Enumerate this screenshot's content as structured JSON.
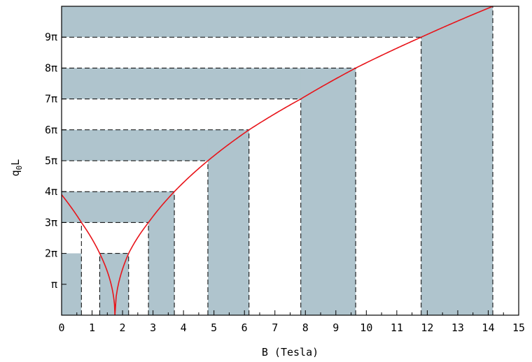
{
  "chart_data": {
    "type": "area",
    "xlabel": "B (Tesla)",
    "ylabel_main": "q",
    "ylabel_sub": "0",
    "ylabel_tail": "L",
    "xlim": [
      0,
      15
    ],
    "ylim": [
      0,
      10
    ],
    "y_unit": "π",
    "x_ticks": [
      {
        "value": 0,
        "label": "0"
      },
      {
        "value": 1,
        "label": "1"
      },
      {
        "value": 2,
        "label": "2"
      },
      {
        "value": 3,
        "label": "3"
      },
      {
        "value": 4,
        "label": "4"
      },
      {
        "value": 5,
        "label": "5"
      },
      {
        "value": 6,
        "label": "6"
      },
      {
        "value": 7,
        "label": "7"
      },
      {
        "value": 8,
        "label": "8"
      },
      {
        "value": 9,
        "label": "9"
      },
      {
        "value": 10,
        "label": "10"
      },
      {
        "value": 11,
        "label": "11"
      },
      {
        "value": 12,
        "label": "12"
      },
      {
        "value": 13,
        "label": "13"
      },
      {
        "value": 14,
        "label": "14"
      },
      {
        "value": 15,
        "label": "15"
      }
    ],
    "y_ticks": [
      {
        "value": 1,
        "label": "π"
      },
      {
        "value": 2,
        "label": "2π"
      },
      {
        "value": 3,
        "label": "3π"
      },
      {
        "value": 4,
        "label": "4π"
      },
      {
        "value": 5,
        "label": "5π"
      },
      {
        "value": 6,
        "label": "6π"
      },
      {
        "value": 7,
        "label": "7π"
      },
      {
        "value": 8,
        "label": "8π"
      },
      {
        "value": 9,
        "label": "9π"
      }
    ],
    "curve": {
      "color": "#e8141a",
      "description_units": "y in units of π",
      "x0": 1.75,
      "points": [
        {
          "x": 0.0,
          "y": 3.9
        },
        {
          "x": 0.65,
          "y": 3.0
        },
        {
          "x": 1.25,
          "y": 2.0
        },
        {
          "x": 1.75,
          "y": 0.0
        },
        {
          "x": 2.2,
          "y": 2.0
        },
        {
          "x": 2.85,
          "y": 3.0
        },
        {
          "x": 3.7,
          "y": 4.0
        },
        {
          "x": 4.8,
          "y": 5.0
        },
        {
          "x": 6.15,
          "y": 6.0
        },
        {
          "x": 7.85,
          "y": 7.0
        },
        {
          "x": 9.65,
          "y": 8.0
        },
        {
          "x": 11.8,
          "y": 9.0
        },
        {
          "x": 14.15,
          "y": 10.0
        }
      ]
    },
    "shade_color": "#afc4cd",
    "bands_horizontal": [
      {
        "y_from": 1,
        "y_to": 2,
        "x_to": 0.65
      },
      {
        "y_from": 3,
        "y_to": 4,
        "x_to": 3.7
      },
      {
        "y_from": 5,
        "y_to": 6,
        "x_to": 6.15
      },
      {
        "y_from": 7,
        "y_to": 8,
        "x_to": 9.65
      },
      {
        "y_from": 9,
        "y_to": 10,
        "x_to": 14.15
      }
    ],
    "bands_vertical": [
      {
        "x_from": 0.0,
        "x_to": 0.65,
        "y_to": 2
      },
      {
        "x_from": 1.25,
        "x_to": 2.2,
        "y_to": 2
      },
      {
        "x_from": 2.85,
        "x_to": 3.7,
        "y_to": 4
      },
      {
        "x_from": 4.8,
        "x_to": 6.15,
        "y_to": 6
      },
      {
        "x_from": 7.85,
        "x_to": 9.65,
        "y_to": 8
      },
      {
        "x_from": 11.8,
        "x_to": 14.15,
        "y_to": 10
      }
    ],
    "dashed_guides": [
      {
        "y": 2,
        "x_from": 1.25,
        "x_to": 2.2
      },
      {
        "y": 3,
        "x_from": 0.0,
        "x_to": 2.85
      },
      {
        "y": 4,
        "x_from": 0.0,
        "x_to": 3.7
      },
      {
        "y": 5,
        "x_from": 0.0,
        "x_to": 4.8
      },
      {
        "y": 6,
        "x_from": 0.0,
        "x_to": 6.15
      },
      {
        "y": 7,
        "x_from": 0.0,
        "x_to": 7.85
      },
      {
        "y": 8,
        "x_from": 0.0,
        "x_to": 9.65
      },
      {
        "y": 9,
        "x_from": 0.0,
        "x_to": 11.8
      }
    ],
    "dashed_verticals": [
      {
        "x": 0.65,
        "y_to": 3
      },
      {
        "x": 1.25,
        "y_to": 2
      },
      {
        "x": 2.2,
        "y_to": 2
      },
      {
        "x": 2.85,
        "y_to": 3
      },
      {
        "x": 3.7,
        "y_to": 4
      },
      {
        "x": 4.8,
        "y_to": 5
      },
      {
        "x": 6.15,
        "y_to": 6
      },
      {
        "x": 7.85,
        "y_to": 7
      },
      {
        "x": 9.65,
        "y_to": 8
      },
      {
        "x": 11.8,
        "y_to": 9
      },
      {
        "x": 14.15,
        "y_to": 10
      }
    ]
  }
}
